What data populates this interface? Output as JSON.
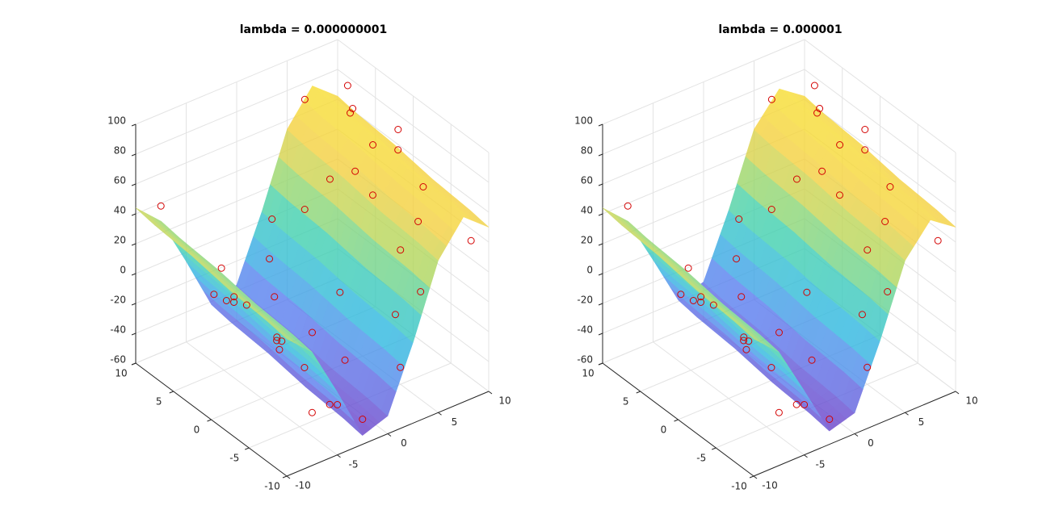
{
  "chart_data": [
    {
      "type": "surface3d",
      "title": "lambda = 0.000000001",
      "xlim": [
        -10,
        10
      ],
      "ylim": [
        -10,
        10
      ],
      "zlim": [
        -60,
        100
      ],
      "xticks": [
        -10,
        -5,
        0,
        5,
        10
      ],
      "yticks": [
        -10,
        -5,
        0,
        5,
        10
      ],
      "zticks": [
        -60,
        -40,
        -20,
        0,
        20,
        40,
        60,
        80,
        100
      ],
      "grid": true,
      "colormap": [
        "#6a3fc8",
        "#5a7ef0",
        "#2fb8e0",
        "#40d0b0",
        "#a8d860",
        "#f5d040",
        "#f8e030"
      ],
      "surface": {
        "x": [
          -10,
          -7.5,
          -5,
          -2.5,
          0,
          2.5,
          5,
          7.5,
          10
        ],
        "y": [
          -10,
          -7.5,
          -5,
          -2.5,
          0,
          2.5,
          5,
          7.5,
          10
        ],
        "z": [
          [
            32,
            16,
            -18,
            -54,
            -48,
            -6,
            42,
            64,
            50
          ],
          [
            34,
            18,
            -16,
            -52,
            -46,
            -4,
            44,
            66,
            52
          ],
          [
            35,
            19,
            -15,
            -51,
            -45,
            -3,
            45,
            67,
            53
          ],
          [
            36,
            20,
            -14,
            -50,
            -44,
            -2,
            46,
            68,
            54
          ],
          [
            38,
            22,
            -12,
            -48,
            -42,
            0,
            48,
            70,
            56
          ],
          [
            40,
            24,
            -10,
            -46,
            -40,
            2,
            50,
            72,
            58
          ],
          [
            41,
            25,
            -9,
            -45,
            -39,
            3,
            51,
            73,
            59
          ],
          [
            42,
            26,
            -8,
            -44,
            -38,
            4,
            52,
            74,
            60
          ],
          [
            44,
            28,
            -6,
            -42,
            -36,
            6,
            54,
            76,
            62
          ]
        ]
      },
      "scatter": {
        "color": "#d40000",
        "x": [
          -9,
          -8,
          -6,
          -5,
          -4,
          -3,
          -2,
          -1,
          0,
          1,
          2,
          3,
          4,
          5,
          6,
          7,
          8,
          9,
          10,
          -10,
          -7,
          -6,
          -3,
          -2,
          0,
          1,
          2,
          3,
          4,
          5,
          6,
          7,
          8,
          9,
          -9,
          -5,
          -1,
          2,
          6,
          9
        ],
        "y": [
          8,
          -6,
          4,
          -9,
          6,
          -4,
          2,
          -8,
          5,
          -3,
          8,
          -7,
          3,
          -5,
          9,
          -2,
          6,
          -9,
          2,
          -3,
          1,
          -7,
          9,
          -6,
          0,
          7,
          -1,
          5,
          -9,
          1,
          -6,
          4,
          -4,
          7,
          -8,
          2,
          3,
          -9,
          0,
          4
        ],
        "z": [
          50,
          10,
          15,
          -30,
          -20,
          -60,
          -35,
          -55,
          -25,
          -40,
          10,
          0,
          50,
          30,
          75,
          80,
          90,
          40,
          70,
          30,
          10,
          -10,
          -30,
          -50,
          -30,
          -10,
          -5,
          25,
          20,
          60,
          50,
          85,
          60,
          65,
          20,
          -5,
          -50,
          -25,
          45,
          55
        ]
      }
    },
    {
      "type": "surface3d",
      "title": "lambda = 0.000001",
      "xlim": [
        -10,
        10
      ],
      "ylim": [
        -10,
        10
      ],
      "zlim": [
        -60,
        100
      ],
      "xticks": [
        -10,
        -5,
        0,
        5,
        10
      ],
      "yticks": [
        -10,
        -5,
        0,
        5,
        10
      ],
      "zticks": [
        -60,
        -40,
        -20,
        0,
        20,
        40,
        60,
        80,
        100
      ],
      "grid": true,
      "colormap": [
        "#6a3fc8",
        "#5a7ef0",
        "#2fb8e0",
        "#40d0b0",
        "#a8d860",
        "#f5d040",
        "#f8e030"
      ],
      "surface": {
        "x": [
          -10,
          -7.5,
          -5,
          -2.5,
          0,
          2.5,
          5,
          7.5,
          10
        ],
        "y": [
          -10,
          -7.5,
          -5,
          -2.5,
          0,
          2.5,
          5,
          7.5,
          10
        ],
        "z": [
          [
            32,
            16,
            -17,
            -51,
            -46,
            -5,
            42,
            62,
            50
          ],
          [
            34,
            18,
            -15,
            -49,
            -44,
            -3,
            44,
            64,
            52
          ],
          [
            35,
            19,
            -14,
            -48,
            -43,
            -2,
            45,
            65,
            53
          ],
          [
            36,
            20,
            -13,
            -47,
            -42,
            -1,
            46,
            66,
            54
          ],
          [
            38,
            22,
            -11,
            -45,
            -40,
            1,
            48,
            68,
            56
          ],
          [
            40,
            24,
            -9,
            -43,
            -38,
            3,
            50,
            70,
            58
          ],
          [
            41,
            25,
            -8,
            -42,
            -37,
            4,
            51,
            71,
            59
          ],
          [
            42,
            26,
            -7,
            -41,
            -36,
            5,
            52,
            72,
            60
          ],
          [
            44,
            28,
            -5,
            -39,
            -34,
            7,
            54,
            74,
            62
          ]
        ]
      },
      "scatter": {
        "color": "#d40000",
        "x": [
          -9,
          -8,
          -6,
          -5,
          -4,
          -3,
          -2,
          -1,
          0,
          1,
          2,
          3,
          4,
          5,
          6,
          7,
          8,
          9,
          10,
          -10,
          -7,
          -6,
          -3,
          -2,
          0,
          1,
          2,
          3,
          4,
          5,
          6,
          7,
          8,
          9,
          -9,
          -5,
          -1,
          2,
          6,
          9
        ],
        "y": [
          8,
          -6,
          4,
          -9,
          6,
          -4,
          2,
          -8,
          5,
          -3,
          8,
          -7,
          3,
          -5,
          9,
          -2,
          6,
          -9,
          2,
          -3,
          1,
          -7,
          9,
          -6,
          0,
          7,
          -1,
          5,
          -9,
          1,
          -6,
          4,
          -4,
          7,
          -8,
          2,
          3,
          -9,
          0,
          4
        ],
        "z": [
          50,
          10,
          15,
          -30,
          -20,
          -60,
          -35,
          -55,
          -25,
          -40,
          10,
          0,
          50,
          30,
          75,
          80,
          90,
          40,
          70,
          30,
          10,
          -10,
          -30,
          -50,
          -30,
          -10,
          -5,
          25,
          20,
          60,
          50,
          85,
          60,
          65,
          20,
          -5,
          -50,
          -25,
          45,
          55
        ]
      }
    }
  ]
}
